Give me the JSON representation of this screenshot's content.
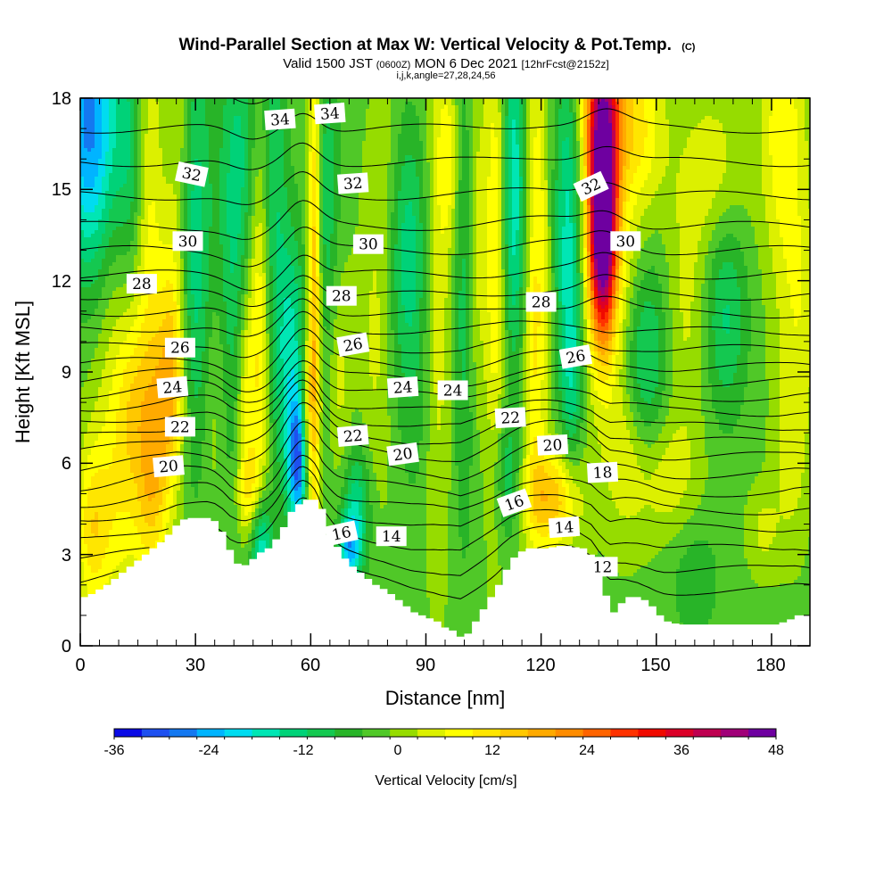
{
  "chart_data": {
    "type": "heatmap",
    "title": "Wind-Parallel Section at Max W: Vertical Velocity & Pot.Temp.",
    "title_suffix": "(C)",
    "subtitle_parts": [
      "Valid 1500 JST ",
      "(0600Z)",
      " MON 6 Dec 2021 ",
      "[12hrFcst@2152z]"
    ],
    "subtitle2": "i,j,k,angle=27,28,24,56",
    "xlabel": "Distance [nm]",
    "ylabel": "Height [Kft MSL]",
    "xlim": [
      0,
      190
    ],
    "ylim": [
      0,
      18
    ],
    "xticks": [
      "0",
      "30",
      "60",
      "90",
      "120",
      "150",
      "180"
    ],
    "yticks": [
      "0",
      "3",
      "6",
      "9",
      "12",
      "15",
      "18"
    ],
    "colorbar": {
      "label": "Vertical Velocity [cm/s]",
      "range": [
        -36,
        48
      ],
      "step": 4,
      "ticks": [
        "-36",
        "-24",
        "-12",
        "0",
        "12",
        "24",
        "36",
        "48"
      ],
      "colors": [
        "#0a0ae6",
        "#1e50f0",
        "#1478f0",
        "#00b4ff",
        "#00dcf0",
        "#00e6b4",
        "#00d278",
        "#14c850",
        "#28b428",
        "#50c828",
        "#96dc00",
        "#dcf000",
        "#ffff00",
        "#ffe600",
        "#ffc800",
        "#ffaa00",
        "#ff8c00",
        "#ff6400",
        "#ff3200",
        "#f00a00",
        "#dc0028",
        "#be0050",
        "#a00078",
        "#6e00a0"
      ]
    },
    "terrain": {
      "x": [
        0,
        2,
        6,
        9,
        12,
        15,
        18,
        21,
        23,
        25,
        27,
        29,
        31,
        33,
        35,
        37,
        39,
        41,
        43,
        45,
        48,
        50,
        52,
        53,
        55,
        57,
        59,
        61,
        62,
        63,
        65,
        67,
        70,
        73,
        76,
        79,
        82,
        84,
        86,
        88,
        90,
        92,
        94,
        96,
        98,
        99,
        100,
        102,
        104,
        106,
        108,
        110,
        112,
        115,
        120,
        125,
        130,
        133,
        135,
        137,
        138,
        140,
        142,
        145,
        148,
        150,
        152,
        155,
        160,
        165,
        170,
        175,
        180,
        183,
        186,
        190
      ],
      "h": [
        1.6,
        1.7,
        2.0,
        2.3,
        2.6,
        2.9,
        3.2,
        3.5,
        3.8,
        4.1,
        4.2,
        4.2,
        4.2,
        4.2,
        4.0,
        3.5,
        2.8,
        2.6,
        2.7,
        3.0,
        3.2,
        3.5,
        3.9,
        4.3,
        4.5,
        4.8,
        4.8,
        4.8,
        4.5,
        3.8,
        3.5,
        3.0,
        2.6,
        2.3,
        2.0,
        1.8,
        1.5,
        1.3,
        1.1,
        1.0,
        0.9,
        0.8,
        0.6,
        0.5,
        0.3,
        0.2,
        0.4,
        0.8,
        1.2,
        1.6,
        2.0,
        2.5,
        2.9,
        3.2,
        3.2,
        3.3,
        3.2,
        2.9,
        2.0,
        1.3,
        1.1,
        1.4,
        1.6,
        1.6,
        1.3,
        1.0,
        0.8,
        0.7,
        0.7,
        0.7,
        0.7,
        0.7,
        0.7,
        0.8,
        1.0,
        1.0
      ]
    },
    "w_features": [
      {
        "x": 2,
        "z": 17.5,
        "sx": 6,
        "sz": 3.2,
        "w": -24
      },
      {
        "x": 3,
        "z": 12,
        "sx": 4,
        "sz": 5,
        "w": -8
      },
      {
        "x": 6,
        "z": 9.5,
        "sx": 6,
        "sz": 3,
        "w": 9
      },
      {
        "x": 3,
        "z": 3.8,
        "sx": 3,
        "sz": 2,
        "w": 14
      },
      {
        "x": 10,
        "z": 4.5,
        "sx": 5,
        "sz": 2.5,
        "w": 10
      },
      {
        "x": 14,
        "z": 8,
        "sx": 3,
        "sz": 2,
        "w": 10
      },
      {
        "x": 13,
        "z": 16,
        "sx": 2.5,
        "sz": 3,
        "w": -8
      },
      {
        "x": 18,
        "z": 13,
        "sx": 2.5,
        "sz": 6,
        "w": 10
      },
      {
        "x": 24,
        "z": 10,
        "sx": 2.5,
        "sz": 3,
        "w": 14
      },
      {
        "x": 22,
        "z": 8,
        "sx": 3,
        "sz": 2,
        "w": 12
      },
      {
        "x": 19,
        "z": 5,
        "sx": 3,
        "sz": 2,
        "w": 12
      },
      {
        "x": 26,
        "z": 17,
        "sx": 2,
        "sz": 3,
        "w": 6
      },
      {
        "x": 30,
        "z": 13,
        "sx": 3,
        "sz": 5,
        "w": -14
      },
      {
        "x": 40,
        "z": 10,
        "sx": 3,
        "sz": 5,
        "w": -12
      },
      {
        "x": 36,
        "z": 8,
        "sx": 3,
        "sz": 3,
        "w": 6
      },
      {
        "x": 42,
        "z": 16.5,
        "sx": 4,
        "sz": 3,
        "w": -8
      },
      {
        "x": 47,
        "z": 11,
        "sx": 2,
        "sz": 5,
        "w": 16
      },
      {
        "x": 43,
        "z": 8,
        "sx": 2,
        "sz": 3,
        "w": 14
      },
      {
        "x": 45,
        "z": 5,
        "sx": 3,
        "sz": 1,
        "w": 12
      },
      {
        "x": 50,
        "z": 14,
        "sx": 2.5,
        "sz": 6,
        "w": -12
      },
      {
        "x": 55,
        "z": 9.5,
        "sx": 2.5,
        "sz": 3,
        "w": -16
      },
      {
        "x": 57,
        "z": 6,
        "sx": 2,
        "sz": 1.5,
        "w": -30
      },
      {
        "x": 47,
        "z": 3.5,
        "sx": 2,
        "sz": 1.5,
        "w": -22
      },
      {
        "x": 61,
        "z": 11,
        "sx": 1.2,
        "sz": 6.5,
        "w": 24
      },
      {
        "x": 59,
        "z": 7,
        "sx": 1.2,
        "sz": 2,
        "w": 16
      },
      {
        "x": 64,
        "z": 14,
        "sx": 2.5,
        "sz": 5,
        "w": -10
      },
      {
        "x": 67,
        "z": 9,
        "sx": 2.5,
        "sz": 2.5,
        "w": 8
      },
      {
        "x": 72,
        "z": 4.5,
        "sx": 2.5,
        "sz": 1.5,
        "w": -14
      },
      {
        "x": 70,
        "z": 3.2,
        "sx": 2,
        "sz": 0.8,
        "w": -20
      },
      {
        "x": 77,
        "z": 10,
        "sx": 3,
        "sz": 3.5,
        "w": 6
      },
      {
        "x": 80,
        "z": 15,
        "sx": 3,
        "sz": 3,
        "w": 5
      },
      {
        "x": 85,
        "z": 13,
        "sx": 4,
        "sz": 3,
        "w": -14
      },
      {
        "x": 87,
        "z": 7.5,
        "sx": 3,
        "sz": 2.5,
        "w": -4
      },
      {
        "x": 93,
        "z": 12,
        "sx": 2.5,
        "sz": 6,
        "w": 8
      },
      {
        "x": 96,
        "z": 16,
        "sx": 2,
        "sz": 2,
        "w": 10
      },
      {
        "x": 100,
        "z": 12,
        "sx": 2,
        "sz": 6,
        "w": -10
      },
      {
        "x": 103,
        "z": 13.5,
        "sx": 2,
        "sz": 4,
        "w": 8
      },
      {
        "x": 108,
        "z": 13,
        "sx": 1.8,
        "sz": 6,
        "w": 12
      },
      {
        "x": 113,
        "z": 15,
        "sx": 2,
        "sz": 4,
        "w": -18
      },
      {
        "x": 111,
        "z": 5.5,
        "sx": 2.5,
        "sz": 1.5,
        "w": -10
      },
      {
        "x": 119,
        "z": 13.5,
        "sx": 2,
        "sz": 5,
        "w": 12
      },
      {
        "x": 118,
        "z": 8,
        "sx": 2,
        "sz": 3,
        "w": 6
      },
      {
        "x": 123,
        "z": 4.8,
        "sx": 5,
        "sz": 1.2,
        "w": 20
      },
      {
        "x": 127,
        "z": 14,
        "sx": 2.5,
        "sz": 4,
        "w": -16
      },
      {
        "x": 128,
        "z": 9,
        "sx": 2,
        "sz": 2.5,
        "w": -10
      },
      {
        "x": 136,
        "z": 14,
        "sx": 2.3,
        "sz": 2.5,
        "w": 50
      },
      {
        "x": 136,
        "z": 15,
        "sx": 3.5,
        "sz": 3.8,
        "w": 26
      },
      {
        "x": 136,
        "z": 18,
        "sx": 4,
        "sz": 1.5,
        "w": 18
      },
      {
        "x": 145,
        "z": 17,
        "sx": 5,
        "sz": 2,
        "w": 14
      },
      {
        "x": 143,
        "z": 12,
        "sx": 4,
        "sz": 2,
        "w": 6
      },
      {
        "x": 147,
        "z": 9.5,
        "sx": 4,
        "sz": 2.5,
        "w": -14
      },
      {
        "x": 142,
        "z": 6.5,
        "sx": 4,
        "sz": 2,
        "w": 8
      },
      {
        "x": 152,
        "z": 5.5,
        "sx": 6,
        "sz": 1.5,
        "w": 8
      },
      {
        "x": 158,
        "z": 11,
        "sx": 4,
        "sz": 3,
        "w": 6
      },
      {
        "x": 168,
        "z": 11,
        "sx": 4,
        "sz": 2.5,
        "w": -12
      },
      {
        "x": 165,
        "z": 15.5,
        "sx": 6,
        "sz": 2,
        "w": 8
      },
      {
        "x": 160,
        "z": 2.2,
        "sx": 5,
        "sz": 1.5,
        "w": -6
      },
      {
        "x": 183,
        "z": 17,
        "sx": 4,
        "sz": 3,
        "w": 12
      },
      {
        "x": 187,
        "z": 11,
        "sx": 4,
        "sz": 3,
        "w": 8
      },
      {
        "x": 185,
        "z": 6,
        "sx": 3,
        "sz": 2,
        "w": 6
      },
      {
        "x": 178,
        "z": 3.8,
        "sx": 3,
        "sz": 1,
        "w": 6
      }
    ],
    "theta": {
      "levels": [
        11,
        12,
        13,
        14,
        15,
        16,
        17,
        18,
        19,
        20,
        21,
        22,
        23,
        24,
        25,
        26,
        27,
        28,
        29,
        30,
        31,
        32,
        33,
        34,
        35
      ],
      "base_height": [
        1.6,
        2.3,
        3.0,
        3.7,
        4.3,
        4.9,
        5.5,
        6.1,
        6.6,
        7.1,
        7.6,
        8.1,
        8.6,
        9.1,
        9.7,
        10.3,
        10.9,
        11.5,
        12.2,
        13.0,
        13.8,
        14.8,
        15.9,
        17.0,
        18.3
      ],
      "labels": [
        {
          "text": "34",
          "x": 52,
          "z": 17.3,
          "rot": -4
        },
        {
          "text": "34",
          "x": 65,
          "z": 17.5,
          "rot": -4
        },
        {
          "text": "32",
          "x": 29,
          "z": 15.5,
          "rot": 12
        },
        {
          "text": "32",
          "x": 71,
          "z": 15.2,
          "rot": -4
        },
        {
          "text": "32",
          "x": 133,
          "z": 15.1,
          "rot": -25
        },
        {
          "text": "30",
          "x": 28,
          "z": 13.3,
          "rot": 0
        },
        {
          "text": "30",
          "x": 75,
          "z": 13.2,
          "rot": 0
        },
        {
          "text": "30",
          "x": 142,
          "z": 13.3,
          "rot": 0
        },
        {
          "text": "28",
          "x": 16,
          "z": 11.9,
          "rot": 0
        },
        {
          "text": "28",
          "x": 68,
          "z": 11.5,
          "rot": 0
        },
        {
          "text": "28",
          "x": 120,
          "z": 11.3,
          "rot": 0
        },
        {
          "text": "26",
          "x": 26,
          "z": 9.8,
          "rot": 0
        },
        {
          "text": "26",
          "x": 71,
          "z": 9.9,
          "rot": -10
        },
        {
          "text": "26",
          "x": 129,
          "z": 9.5,
          "rot": -10
        },
        {
          "text": "24",
          "x": 24,
          "z": 8.5,
          "rot": -5
        },
        {
          "text": "24",
          "x": 84,
          "z": 8.5,
          "rot": -4
        },
        {
          "text": "24",
          "x": 97,
          "z": 8.4,
          "rot": 0
        },
        {
          "text": "22",
          "x": 26,
          "z": 7.2,
          "rot": 0
        },
        {
          "text": "22",
          "x": 71,
          "z": 6.9,
          "rot": -5
        },
        {
          "text": "22",
          "x": 112,
          "z": 7.5,
          "rot": -3
        },
        {
          "text": "20",
          "x": 23,
          "z": 5.9,
          "rot": -5
        },
        {
          "text": "20",
          "x": 84,
          "z": 6.3,
          "rot": -8
        },
        {
          "text": "20",
          "x": 123,
          "z": 6.6,
          "rot": -3
        },
        {
          "text": "18",
          "x": 136,
          "z": 5.7,
          "rot": -3
        },
        {
          "text": "16",
          "x": 68,
          "z": 3.7,
          "rot": -12
        },
        {
          "text": "16",
          "x": 113,
          "z": 4.7,
          "rot": -20
        },
        {
          "text": "14",
          "x": 81,
          "z": 3.6,
          "rot": 0
        },
        {
          "text": "14",
          "x": 126,
          "z": 3.9,
          "rot": -4
        },
        {
          "text": "12",
          "x": 136,
          "z": 2.6,
          "rot": 0
        }
      ]
    }
  }
}
